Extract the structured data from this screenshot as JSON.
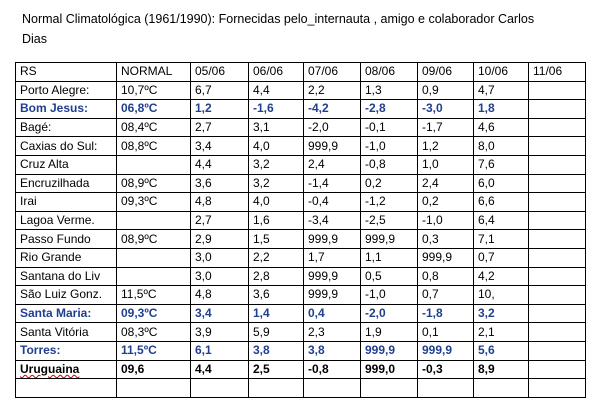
{
  "header": {
    "title": "Normal Climatológica (1961/1990):  Fornecidas pelo_internauta , amigo e colaborador Carlos Dias"
  },
  "table": {
    "columns": [
      "RS",
      "NORMAL",
      "05/06",
      "06/06",
      "07/06",
      "08/06",
      "09/06",
      "10/06",
      "11/06"
    ],
    "rows": [
      {
        "station": "Porto Alegre:",
        "normal": "10,7ºC",
        "values": [
          "6,7",
          "4,4",
          "2,2",
          "1,3",
          "0,9",
          "4,7"
        ]
      },
      {
        "station": "Bom Jesus:",
        "normal": "06,8ºC",
        "values": [
          "1,2",
          "-1,6",
          "-4,2",
          "-2,8",
          "-3,0",
          "1,8"
        ],
        "style": "highlight"
      },
      {
        "station": "Bagé:",
        "normal": "08,4ºC",
        "values": [
          "2,7",
          "3,1",
          "-2,0",
          "-0,1",
          "-1,7",
          "4,6"
        ]
      },
      {
        "station": "Caxias do Sul:",
        "normal": "08,8ºC",
        "values": [
          "3,4",
          "4,0",
          "999,9",
          "-1,0",
          "1,2",
          "8,0"
        ]
      },
      {
        "station": "Cruz Alta",
        "values": [
          "4,4",
          "3,2",
          "2,4",
          "-0,8",
          "1,0",
          "7,6"
        ]
      },
      {
        "station": "Encruzilhada",
        "normal": "08,9ºC",
        "values": [
          "3,6",
          "3,2",
          "-1,4",
          "0,2",
          "2,4",
          "6,0"
        ]
      },
      {
        "station": "Irai",
        "normal": "09,3ºC",
        "values": [
          "4,8",
          "4,0",
          "-0,4",
          "-1,2",
          "0,2",
          "6,6"
        ]
      },
      {
        "station": "Lagoa Verme.",
        "values": [
          "2,7",
          "1,6",
          "-3,4",
          "-2,5",
          "-1,0",
          "6,4"
        ]
      },
      {
        "station": "Passo Fundo",
        "normal": "08,9ºC",
        "values": [
          "2,9",
          "1,5",
          "999,9",
          "999,9",
          "0,3",
          "7,1"
        ]
      },
      {
        "station": "Rio Grande",
        "values": [
          "3,0",
          "2,2",
          "1,7",
          "1,1",
          "999,9",
          "0,7"
        ]
      },
      {
        "station": "Santana do Liv",
        "values": [
          "3,0",
          "2,8",
          "999,9",
          "0,5",
          "0,8",
          "4,2"
        ]
      },
      {
        "station": "São Luiz Gonz.",
        "normal": "11,5ºC",
        "values": [
          "4,8",
          "3,6",
          "999,9",
          "-1,0",
          "0,7",
          "10,"
        ]
      },
      {
        "station": "Santa Maria:",
        "normal": "09,3ºC",
        "values": [
          "3,4",
          "1,4",
          "0,4",
          "-2,0",
          "-1,8",
          "3,2"
        ],
        "style": "highlight"
      },
      {
        "station": "Santa Vitória",
        "normal": "08,3ºC",
        "values": [
          "3,9",
          "5,9",
          "2,3",
          "1,9",
          "0,1",
          "2,1"
        ]
      },
      {
        "station": "Torres:",
        "normal": "11,5ºC",
        "values": [
          "6,1",
          "3,8",
          "3,8",
          "999,9",
          "999,9",
          "5,6"
        ],
        "style": "highlight"
      },
      {
        "station": "Uruguaina",
        "normal": "09,6",
        "values": [
          "4,4",
          "2,5",
          "-0,8",
          "999,0",
          "-0,3",
          "8,9"
        ],
        "style": "bold"
      }
    ]
  }
}
